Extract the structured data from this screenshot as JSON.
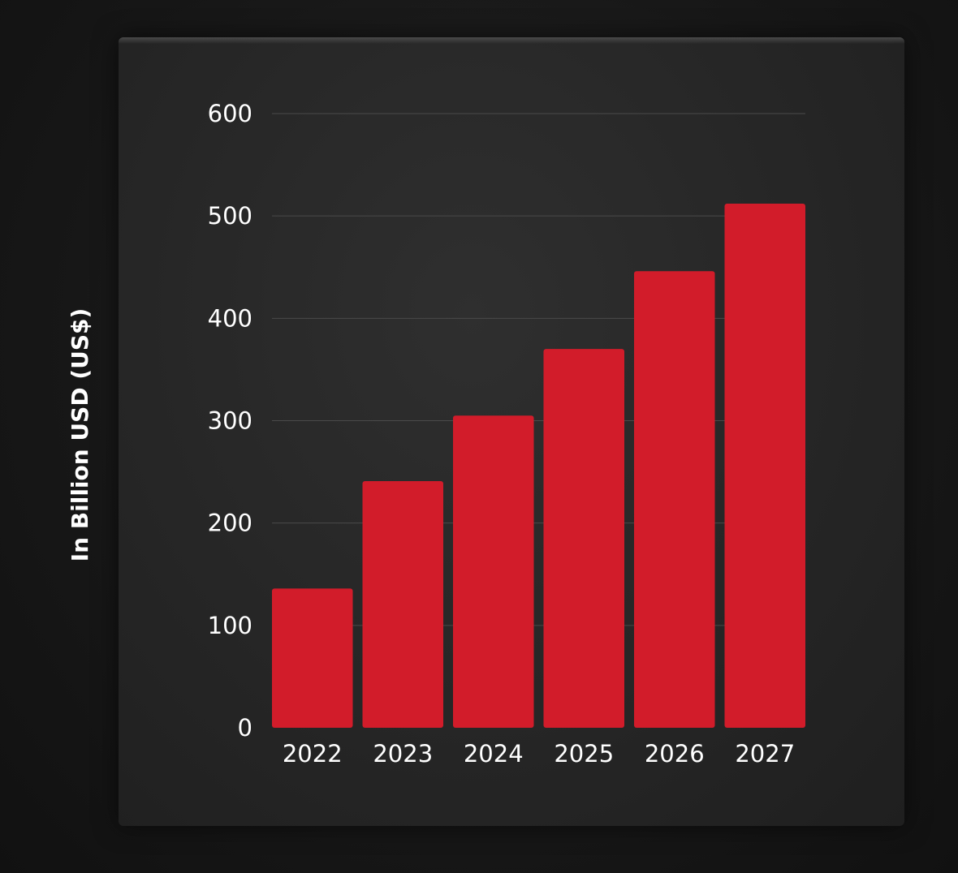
{
  "chart_data": {
    "type": "bar",
    "title": "",
    "xlabel": "",
    "ylabel": "In Billion USD (US$)",
    "categories": [
      "2022",
      "2023",
      "2024",
      "2025",
      "2026",
      "2027"
    ],
    "values": [
      136,
      241,
      305,
      370,
      446,
      512
    ],
    "ylim": [
      0,
      600
    ],
    "yticks": [
      "0",
      "100",
      "200",
      "300",
      "400",
      "500",
      "600"
    ],
    "grid": true,
    "legend": "none",
    "bar_color": "#d21c2a",
    "background_color": "#262626",
    "gridline_color": "#4a4a4a",
    "text_color": "#ffffff"
  }
}
